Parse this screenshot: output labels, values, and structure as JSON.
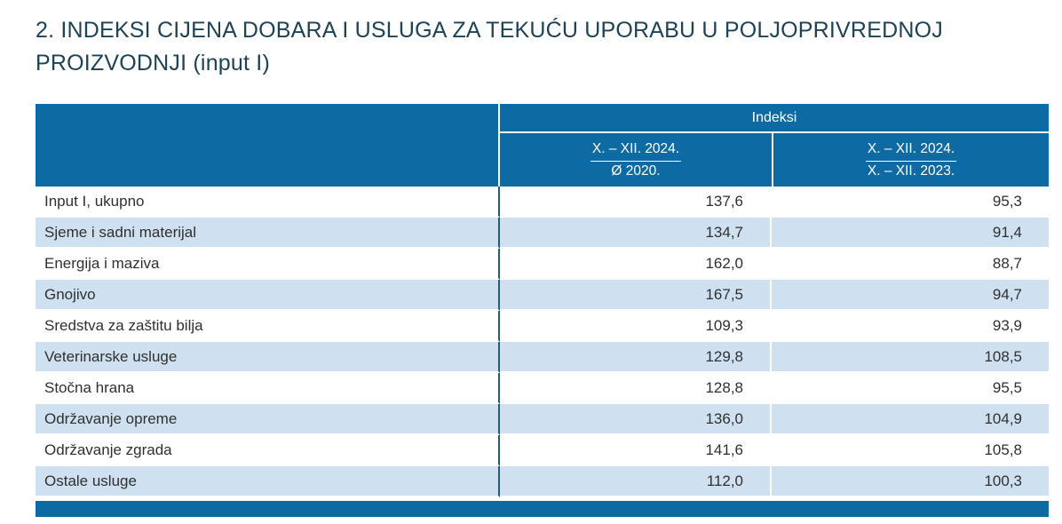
{
  "page": {
    "title": "2. INDEKSI CIJENA DOBARA I USLUGA ZA TEKUĆU UPORABU U POLJOPRIVREDNOJ PROIZVODNJI (input I)"
  },
  "colors": {
    "header_blue": "#0d6aa2",
    "row_stripe_blue": "#cfe0f1",
    "label_divider_blue": "#1e5c8e",
    "title_text": "#1f4254",
    "body_text": "#303030"
  },
  "table": {
    "group_header": "Indeksi",
    "columns": [
      {
        "numerator": "X. – XII. 2024.",
        "denominator": "Ø 2020."
      },
      {
        "numerator": "X. – XII. 2024.",
        "denominator": "X. – XII. 2023."
      }
    ],
    "rows": [
      {
        "label": "Input I, ukupno",
        "v1": "137,6",
        "v2": "95,3"
      },
      {
        "label": "Sjeme i sadni materijal",
        "v1": "134,7",
        "v2": "91,4"
      },
      {
        "label": "Energija i maziva",
        "v1": "162,0",
        "v2": "88,7"
      },
      {
        "label": "Gnojivo",
        "v1": "167,5",
        "v2": "94,7"
      },
      {
        "label": "Sredstva za zaštitu bilja",
        "v1": "109,3",
        "v2": "93,9"
      },
      {
        "label": "Veterinarske usluge",
        "v1": "129,8",
        "v2": "108,5"
      },
      {
        "label": "Stočna hrana",
        "v1": "128,8",
        "v2": "95,5"
      },
      {
        "label": "Održavanje opreme",
        "v1": "136,0",
        "v2": "104,9"
      },
      {
        "label": "Održavanje zgrada",
        "v1": "141,6",
        "v2": "105,8"
      },
      {
        "label": "Ostale usluge",
        "v1": "112,0",
        "v2": "100,3"
      }
    ]
  },
  "chart_data": {
    "type": "table",
    "title": "2. INDEKSI CIJENA DOBARA I USLUGA ZA TEKUĆU UPORABU U POLJOPRIVREDNOJ PROIZVODNJI (input I)",
    "group_header": "Indeksi",
    "column_headers": [
      "X. – XII. 2024. / Ø 2020.",
      "X. – XII. 2024. / X. – XII. 2023."
    ],
    "categories": [
      "Input I, ukupno",
      "Sjeme i sadni materijal",
      "Energija i maziva",
      "Gnojivo",
      "Sredstva za zaštitu bilja",
      "Veterinarske usluge",
      "Stočna hrana",
      "Održavanje opreme",
      "Održavanje zgrada",
      "Ostale usluge"
    ],
    "series": [
      {
        "name": "X. – XII. 2024. / Ø 2020.",
        "values": [
          137.6,
          134.7,
          162.0,
          167.5,
          109.3,
          129.8,
          128.8,
          136.0,
          141.6,
          112.0
        ]
      },
      {
        "name": "X. – XII. 2024. / X. – XII. 2023.",
        "values": [
          95.3,
          91.4,
          88.7,
          94.7,
          93.9,
          108.5,
          95.5,
          104.9,
          105.8,
          100.3
        ]
      }
    ]
  }
}
